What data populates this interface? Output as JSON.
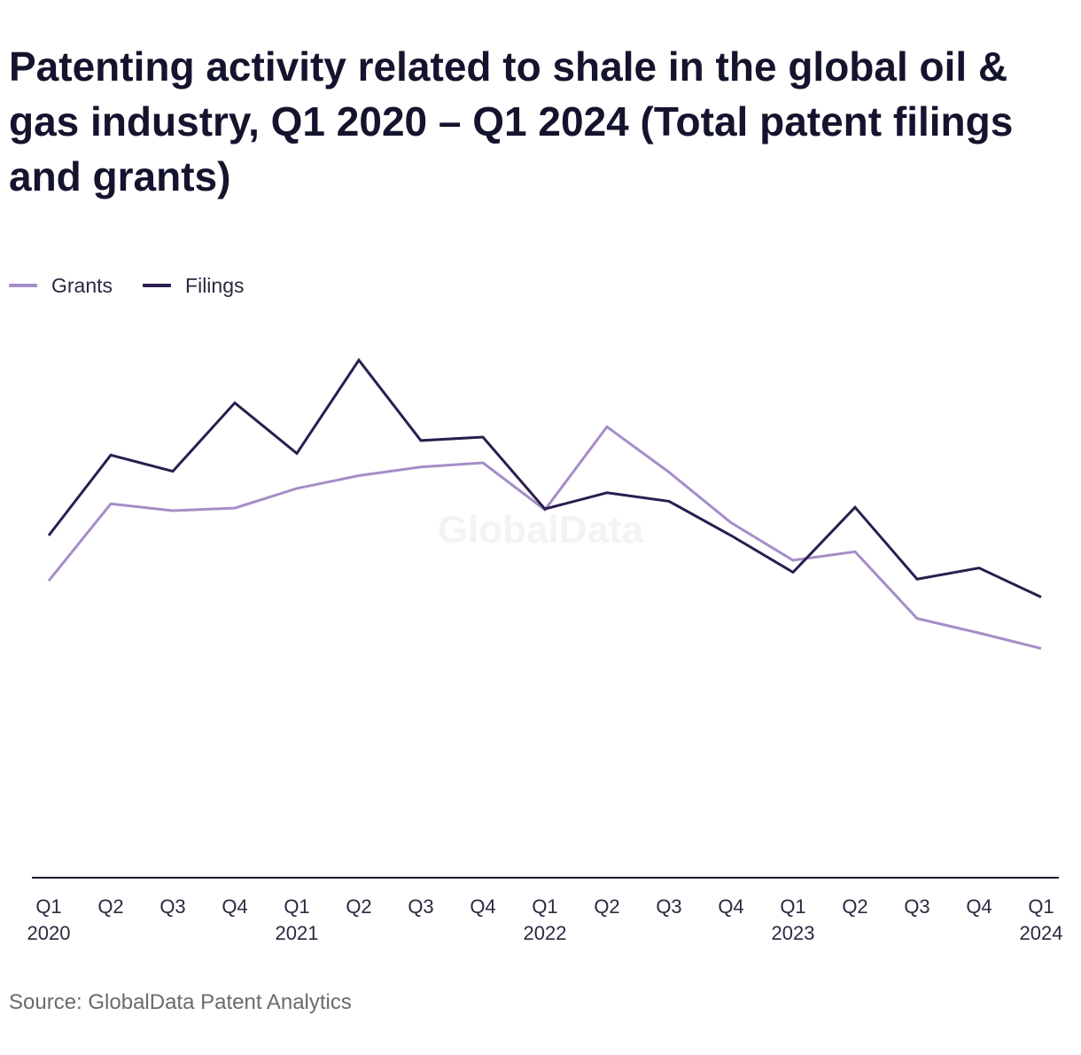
{
  "title": "Patenting activity related to shale in the global oil & gas industry, Q1 2020 – Q1 2024 (Total patent filings and grants)",
  "source": "Source: GlobalData Patent Analytics",
  "watermark": "GlobalData",
  "colors": {
    "grants": "#a58dc8",
    "filings": "#2b1d4f",
    "axis": "#1b1a33"
  },
  "chart_data": {
    "type": "line",
    "title": "Patenting activity related to shale in the global oil & gas industry, Q1 2020 – Q1 2024 (Total patent filings and grants)",
    "categories": [
      [
        "Q1",
        "2020"
      ],
      [
        "Q2",
        ""
      ],
      [
        "Q3",
        ""
      ],
      [
        "Q4",
        ""
      ],
      [
        "Q1",
        "2021"
      ],
      [
        "Q2",
        ""
      ],
      [
        "Q3",
        ""
      ],
      [
        "Q4",
        ""
      ],
      [
        "Q1",
        "2022"
      ],
      [
        "Q2",
        ""
      ],
      [
        "Q3",
        ""
      ],
      [
        "Q4",
        ""
      ],
      [
        "Q1",
        "2023"
      ],
      [
        "Q2",
        ""
      ],
      [
        "Q3",
        ""
      ],
      [
        "Q4",
        ""
      ],
      [
        "Q1",
        "2024"
      ]
    ],
    "series": [
      {
        "name": "Grants",
        "values": [
          347,
          437,
          429,
          432,
          455,
          470,
          480,
          485,
          430,
          527,
          474,
          415,
          371,
          381,
          303,
          286,
          268
        ]
      },
      {
        "name": "Filings",
        "values": [
          400,
          494,
          475,
          555,
          496,
          605,
          511,
          515,
          431,
          450,
          440,
          400,
          357,
          433,
          349,
          362,
          328
        ]
      }
    ],
    "ylim": [
      0,
      1000
    ],
    "grid": false,
    "legend": "top-left"
  }
}
